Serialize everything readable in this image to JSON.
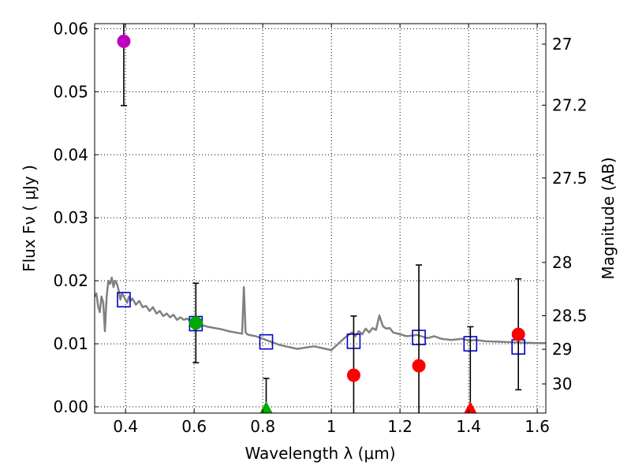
{
  "chart_data": {
    "type": "scatter",
    "xlabel": "Wavelength  λ (μm)",
    "ylabel": "Flux  Fν  ( μJy )",
    "y2label": "Magnitude (AB)",
    "xlim": [
      0.31,
      1.625
    ],
    "ylim": [
      -0.001,
      0.0608
    ],
    "grid": true,
    "x_ticks": [
      0.4,
      0.6,
      0.8,
      1.0,
      1.2,
      1.4,
      1.6
    ],
    "x_tick_labels": [
      "0.4",
      "0.6",
      "0.8",
      "1",
      "1.2",
      "1.4",
      "1.6"
    ],
    "y_ticks": [
      0.0,
      0.01,
      0.02,
      0.03,
      0.04,
      0.05,
      0.06
    ],
    "y_tick_labels": [
      "0.00",
      "0.01",
      "0.02",
      "0.03",
      "0.04",
      "0.05",
      "0.06"
    ],
    "mag_ticks": [
      27,
      27.2,
      27.5,
      28,
      28.5,
      29,
      30
    ],
    "mag_tick_labels": [
      "27",
      "27.2",
      "27.5",
      "28",
      "28.5",
      "29",
      "30"
    ],
    "colors": {
      "model": "#808080",
      "synthetic": "#0000cc",
      "errorbar": "#000000",
      "purple": "#c000c0",
      "green": "#00aa00",
      "red": "#ff0000"
    },
    "model_spectrum": {
      "x": [
        0.31,
        0.315,
        0.32,
        0.325,
        0.33,
        0.335,
        0.34,
        0.345,
        0.35,
        0.355,
        0.36,
        0.365,
        0.37,
        0.375,
        0.38,
        0.385,
        0.39,
        0.395,
        0.4,
        0.405,
        0.41,
        0.415,
        0.42,
        0.43,
        0.44,
        0.45,
        0.46,
        0.47,
        0.48,
        0.49,
        0.5,
        0.51,
        0.52,
        0.53,
        0.54,
        0.55,
        0.56,
        0.57,
        0.58,
        0.59,
        0.6,
        0.62,
        0.64,
        0.66,
        0.68,
        0.7,
        0.72,
        0.74,
        0.745,
        0.75,
        0.755,
        0.76,
        0.78,
        0.8,
        0.82,
        0.85,
        0.9,
        0.95,
        1.0,
        1.02,
        1.04,
        1.06,
        1.07,
        1.08,
        1.09,
        1.1,
        1.11,
        1.12,
        1.13,
        1.14,
        1.15,
        1.16,
        1.17,
        1.18,
        1.2,
        1.22,
        1.25,
        1.28,
        1.3,
        1.32,
        1.35,
        1.38,
        1.4,
        1.42,
        1.45,
        1.5,
        1.55,
        1.6,
        1.625
      ],
      "y": [
        0.0175,
        0.018,
        0.016,
        0.015,
        0.0175,
        0.0165,
        0.012,
        0.0175,
        0.02,
        0.0195,
        0.0205,
        0.019,
        0.02,
        0.0195,
        0.0185,
        0.017,
        0.018,
        0.0175,
        0.017,
        0.0165,
        0.0175,
        0.0168,
        0.0172,
        0.0162,
        0.0168,
        0.0158,
        0.016,
        0.0152,
        0.0158,
        0.0148,
        0.0152,
        0.0144,
        0.0148,
        0.0142,
        0.0146,
        0.0138,
        0.0142,
        0.0138,
        0.014,
        0.0135,
        0.0135,
        0.013,
        0.0127,
        0.0125,
        0.0123,
        0.012,
        0.0118,
        0.0116,
        0.019,
        0.0118,
        0.0115,
        0.0114,
        0.0112,
        0.0108,
        0.0104,
        0.0098,
        0.0092,
        0.0096,
        0.009,
        0.01,
        0.011,
        0.0118,
        0.0112,
        0.012,
        0.0115,
        0.0124,
        0.0118,
        0.0125,
        0.0122,
        0.0145,
        0.0128,
        0.0124,
        0.0125,
        0.0118,
        0.0115,
        0.0112,
        0.0114,
        0.0109,
        0.0112,
        0.0108,
        0.0106,
        0.0108,
        0.0105,
        0.0106,
        0.0104,
        0.0103,
        0.0102,
        0.0101,
        0.0101
      ]
    },
    "synthetic_points": {
      "x": [
        0.395,
        0.605,
        0.81,
        1.065,
        1.255,
        1.405,
        1.545
      ],
      "y": [
        0.017,
        0.0132,
        0.0103,
        0.0104,
        0.011,
        0.01,
        0.0095
      ]
    },
    "observed_points": [
      {
        "x": 0.395,
        "y": 0.058,
        "err": 0.0102,
        "color": "purple",
        "shape": "circle"
      },
      {
        "x": 0.605,
        "y": 0.0133,
        "err": 0.0063,
        "color": "green",
        "shape": "circle"
      },
      {
        "x": 0.81,
        "y": -0.0005,
        "err": 0.005,
        "color": "green",
        "shape": "triangle"
      },
      {
        "x": 1.065,
        "y": 0.005,
        "err": 0.0094,
        "color": "red",
        "shape": "circle"
      },
      {
        "x": 1.255,
        "y": 0.0065,
        "err": 0.016,
        "color": "red",
        "shape": "circle"
      },
      {
        "x": 1.405,
        "y": -0.0005,
        "err": 0.0132,
        "color": "red",
        "shape": "triangle"
      },
      {
        "x": 1.545,
        "y": 0.0115,
        "err": 0.0088,
        "color": "red",
        "shape": "circle"
      }
    ]
  }
}
